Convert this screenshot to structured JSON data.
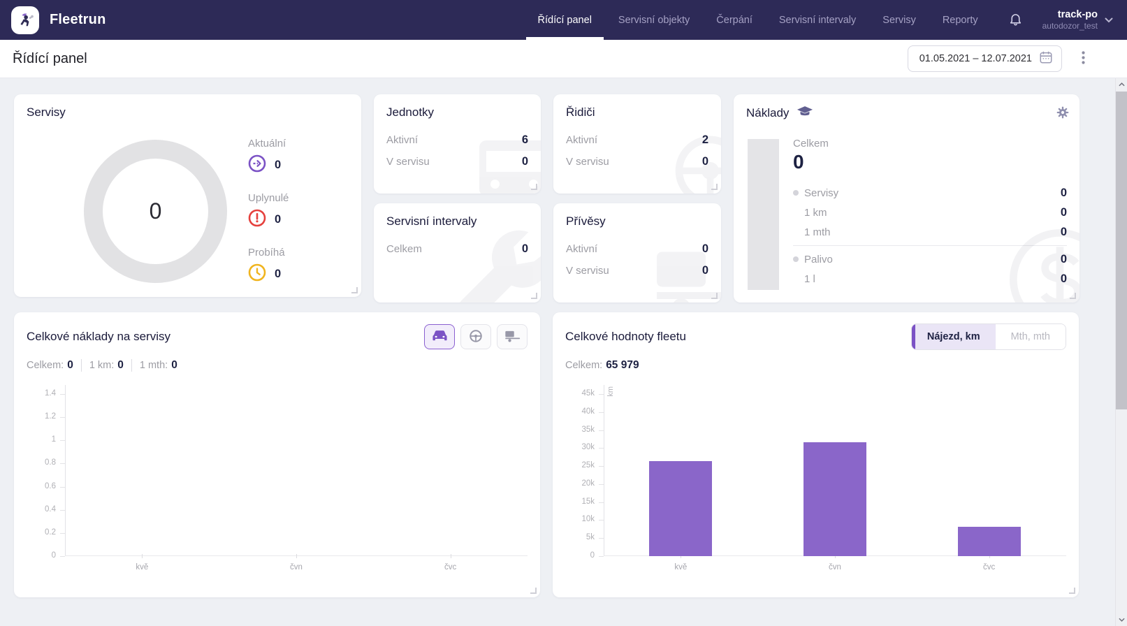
{
  "navbar": {
    "brand": "Fleetrun",
    "items": [
      {
        "id": "ridici-panel",
        "label": "Řídící panel",
        "active": true
      },
      {
        "id": "servisni-objekty",
        "label": "Servisní objekty",
        "active": false
      },
      {
        "id": "cerpani",
        "label": "Čerpání",
        "active": false
      },
      {
        "id": "servisni-intervaly",
        "label": "Servisní intervaly",
        "active": false
      },
      {
        "id": "servisy",
        "label": "Servisy",
        "active": false
      },
      {
        "id": "reporty",
        "label": "Reporty",
        "active": false
      }
    ],
    "user": {
      "name": "track-po",
      "account": "autodozor_test"
    }
  },
  "header": {
    "title": "Řídící panel",
    "date_range": "01.05.2021 – 12.07.2021"
  },
  "cards": {
    "servisy": {
      "title": "Servisy",
      "total": "0",
      "legend": [
        {
          "label": "Aktuální",
          "value": "0",
          "icon": "arrow-right-circle-icon",
          "color": "#7b52c5"
        },
        {
          "label": "Uplynulé",
          "value": "0",
          "icon": "alert-circle-icon",
          "color": "#e5403d"
        },
        {
          "label": "Probíhá",
          "value": "0",
          "icon": "clock-icon",
          "color": "#f0b41e"
        }
      ]
    },
    "jednotky": {
      "title": "Jednotky",
      "rows": [
        {
          "label": "Aktivní",
          "value": "6"
        },
        {
          "label": "V servisu",
          "value": "0"
        }
      ]
    },
    "ridici": {
      "title": "Řidiči",
      "rows": [
        {
          "label": "Aktivní",
          "value": "2"
        },
        {
          "label": "V servisu",
          "value": "0"
        }
      ]
    },
    "servisni_intervaly": {
      "title": "Servisní intervaly",
      "rows": [
        {
          "label": "Celkem",
          "value": "0"
        }
      ]
    },
    "privesy": {
      "title": "Přívěsy",
      "rows": [
        {
          "label": "Aktivní",
          "value": "0"
        },
        {
          "label": "V servisu",
          "value": "0"
        }
      ]
    },
    "naklady": {
      "title": "Náklady",
      "celkem_label": "Celkem",
      "celkem_value": "0",
      "groups": [
        {
          "label": "Servisy",
          "value": "0",
          "bullet": true,
          "sub": [
            {
              "label": "1 km",
              "value": "0"
            },
            {
              "label": "1 mth",
              "value": "0"
            }
          ]
        },
        {
          "label": "Palivo",
          "value": "0",
          "bullet": true,
          "sub": [
            {
              "label": "1 l",
              "value": "0"
            }
          ]
        }
      ]
    }
  },
  "charts": {
    "left": {
      "stats": [
        {
          "label": "Celkem:",
          "value": "0"
        },
        {
          "label": "1 km:",
          "value": "0"
        },
        {
          "label": "1 mth:",
          "value": "0"
        }
      ],
      "modes": [
        {
          "icon": "car-icon",
          "active": true
        },
        {
          "icon": "steering-wheel-icon",
          "active": false
        },
        {
          "icon": "trailer-icon",
          "active": false
        }
      ]
    },
    "right": {
      "stats": [
        {
          "label": "Celkem:",
          "value": "65 979"
        }
      ],
      "toggle": [
        {
          "label": "Nájezd, km",
          "active": true
        },
        {
          "label": "Mth, mth",
          "active": false
        }
      ]
    }
  },
  "chart_data": [
    {
      "type": "bar",
      "title": "Celkové náklady na servisy",
      "categories": [
        "kvě",
        "čvn",
        "čvc"
      ],
      "values": [
        0,
        0,
        0
      ],
      "ylabel": "",
      "ylim": [
        0,
        1.4
      ],
      "yticks": [
        0,
        0.2,
        0.4,
        0.6,
        0.8,
        1,
        1.2,
        1.4
      ],
      "ytick_labels": [
        "0",
        "0.2",
        "0.4",
        "0.6",
        "0.8",
        "1",
        "1.2",
        "1.4"
      ],
      "bar_color": "#8a66c9",
      "grid": false,
      "legend": "none"
    },
    {
      "type": "bar",
      "title": "Celkové hodnoty fleetu",
      "categories": [
        "kvě",
        "čvn",
        "čvc"
      ],
      "values": [
        26300,
        31600,
        8079
      ],
      "total": 65979,
      "ylabel": "km",
      "ylim": [
        0,
        45000
      ],
      "yticks": [
        0,
        5000,
        10000,
        15000,
        20000,
        25000,
        30000,
        35000,
        40000,
        45000
      ],
      "ytick_labels": [
        "0",
        "5k",
        "10k",
        "15k",
        "20k",
        "25k",
        "30k",
        "35k",
        "40k",
        "45k"
      ],
      "bar_color": "#8a66c9",
      "grid": false,
      "legend": "none"
    }
  ]
}
